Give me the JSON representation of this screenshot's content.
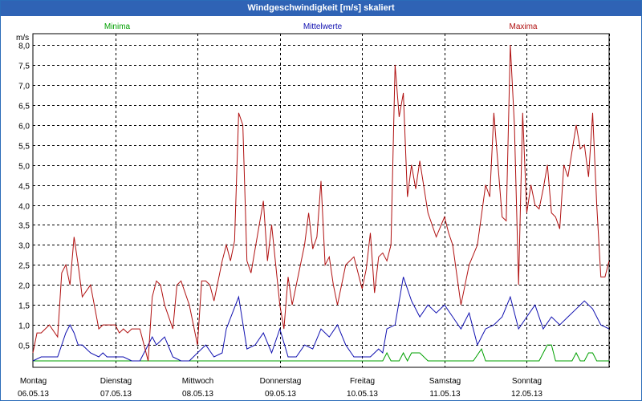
{
  "chart_data": {
    "type": "line",
    "title": "Windgeschwindigkeit [m/s] skaliert",
    "ylabel": "m/s",
    "ylim": [
      0,
      8.0
    ],
    "yticks": [
      "0,5",
      "1,0",
      "1,5",
      "2,0",
      "2,5",
      "3,0",
      "3,5",
      "4,0",
      "4,5",
      "5,0",
      "5,5",
      "6,0",
      "6,5",
      "7,0",
      "7,5",
      "8,0"
    ],
    "xlim": [
      0,
      7
    ],
    "xticks": [
      {
        "day": "Montag",
        "date": "06.05.13"
      },
      {
        "day": "Dienstag",
        "date": "07.05.13"
      },
      {
        "day": "Mittwoch",
        "date": "08.05.13"
      },
      {
        "day": "Donnerstag",
        "date": "09.05.13"
      },
      {
        "day": "Freitag",
        "date": "10.05.13"
      },
      {
        "day": "Samstag",
        "date": "11.05.13"
      },
      {
        "day": "Sonntag",
        "date": "12.05.13"
      }
    ],
    "grid": true,
    "series": [
      {
        "name": "Minima",
        "color": "#00a000",
        "x": [
          0,
          4.25,
          4.3,
          4.35,
          4.45,
          4.5,
          4.55,
          4.6,
          4.7,
          4.8,
          4.85,
          5.35,
          5.45,
          5.5,
          6.15,
          6.25,
          6.3,
          6.35,
          6.4,
          6.45,
          6.55,
          6.6,
          6.65,
          6.7,
          6.75,
          6.8,
          6.85,
          7.0
        ],
        "values": [
          0.1,
          0.1,
          0.3,
          0.1,
          0.1,
          0.3,
          0.1,
          0.3,
          0.3,
          0.1,
          0.1,
          0.1,
          0.4,
          0.1,
          0.1,
          0.5,
          0.5,
          0.1,
          0.1,
          0.1,
          0.1,
          0.3,
          0.1,
          0.1,
          0.3,
          0.3,
          0.1,
          0.1
        ]
      },
      {
        "name": "Mittelwerte",
        "color": "#1010b0",
        "x": [
          0,
          0.1,
          0.2,
          0.3,
          0.35,
          0.4,
          0.45,
          0.5,
          0.55,
          0.6,
          0.7,
          0.8,
          0.85,
          0.9,
          1.0,
          1.1,
          1.2,
          1.3,
          1.4,
          1.45,
          1.5,
          1.6,
          1.7,
          1.8,
          1.9,
          2.0,
          2.1,
          2.2,
          2.3,
          2.35,
          2.5,
          2.6,
          2.7,
          2.8,
          2.9,
          3.0,
          3.1,
          3.2,
          3.3,
          3.4,
          3.5,
          3.6,
          3.7,
          3.8,
          3.9,
          4.0,
          4.1,
          4.2,
          4.25,
          4.3,
          4.4,
          4.5,
          4.6,
          4.7,
          4.8,
          4.9,
          5.0,
          5.1,
          5.2,
          5.3,
          5.4,
          5.5,
          5.6,
          5.7,
          5.8,
          5.9,
          6.0,
          6.1,
          6.2,
          6.3,
          6.4,
          6.5,
          6.6,
          6.7,
          6.8,
          6.9,
          7.0
        ],
        "values": [
          0.1,
          0.2,
          0.2,
          0.2,
          0.5,
          0.8,
          1.0,
          0.8,
          0.5,
          0.5,
          0.3,
          0.2,
          0.3,
          0.2,
          0.2,
          0.2,
          0.1,
          0.1,
          0.5,
          0.7,
          0.5,
          0.7,
          0.2,
          0.1,
          0.1,
          0.3,
          0.5,
          0.2,
          0.3,
          0.9,
          1.7,
          0.4,
          0.5,
          0.8,
          0.3,
          0.9,
          0.2,
          0.2,
          0.5,
          0.4,
          0.9,
          0.7,
          1.0,
          0.5,
          0.2,
          0.2,
          0.2,
          0.4,
          0.3,
          0.9,
          1.0,
          2.2,
          1.6,
          1.2,
          1.5,
          1.3,
          1.5,
          1.2,
          0.9,
          1.3,
          0.5,
          0.9,
          1.0,
          1.2,
          1.7,
          0.9,
          1.2,
          1.5,
          0.9,
          1.2,
          1.0,
          1.2,
          1.4,
          1.6,
          1.4,
          1.0,
          0.9
        ]
      },
      {
        "name": "Maxima",
        "color": "#b01010",
        "x": [
          0,
          0.05,
          0.1,
          0.2,
          0.3,
          0.35,
          0.4,
          0.45,
          0.5,
          0.55,
          0.6,
          0.7,
          0.8,
          0.85,
          0.9,
          1.0,
          1.05,
          1.1,
          1.15,
          1.2,
          1.3,
          1.4,
          1.45,
          1.5,
          1.55,
          1.6,
          1.7,
          1.75,
          1.8,
          1.9,
          2.0,
          2.05,
          2.1,
          2.15,
          2.2,
          2.3,
          2.35,
          2.4,
          2.45,
          2.5,
          2.55,
          2.6,
          2.65,
          2.7,
          2.8,
          2.85,
          2.9,
          3.0,
          3.05,
          3.1,
          3.15,
          3.2,
          3.3,
          3.35,
          3.4,
          3.45,
          3.5,
          3.55,
          3.6,
          3.65,
          3.7,
          3.8,
          3.9,
          4.0,
          4.05,
          4.1,
          4.15,
          4.2,
          4.25,
          4.3,
          4.35,
          4.4,
          4.45,
          4.5,
          4.55,
          4.6,
          4.65,
          4.7,
          4.8,
          4.9,
          5.0,
          5.05,
          5.1,
          5.2,
          5.3,
          5.4,
          5.5,
          5.55,
          5.6,
          5.7,
          5.75,
          5.8,
          5.85,
          5.9,
          5.95,
          6.0,
          6.05,
          6.1,
          6.15,
          6.2,
          6.25,
          6.3,
          6.35,
          6.4,
          6.45,
          6.5,
          6.6,
          6.65,
          6.7,
          6.75,
          6.8,
          6.85,
          6.9,
          6.95,
          7.0
        ],
        "values": [
          0.3,
          0.8,
          0.8,
          1.0,
          0.7,
          2.3,
          2.5,
          2.0,
          3.2,
          2.5,
          1.7,
          2.0,
          0.9,
          1.0,
          1.0,
          1.0,
          0.8,
          0.9,
          0.8,
          0.9,
          0.9,
          0.1,
          1.7,
          2.1,
          2.0,
          1.5,
          0.9,
          2.0,
          2.1,
          1.5,
          0.5,
          2.1,
          2.1,
          2.0,
          1.6,
          2.6,
          3.0,
          2.6,
          3.1,
          6.3,
          6.0,
          2.6,
          2.3,
          2.9,
          4.1,
          2.6,
          3.5,
          1.5,
          0.9,
          2.2,
          1.5,
          2.0,
          3.0,
          3.8,
          2.9,
          3.2,
          4.6,
          2.5,
          2.7,
          2.0,
          1.5,
          2.5,
          2.7,
          1.9,
          2.4,
          3.3,
          1.8,
          2.7,
          2.8,
          2.6,
          3.0,
          7.5,
          6.2,
          6.8,
          4.2,
          5.0,
          4.4,
          5.1,
          3.8,
          3.2,
          3.7,
          3.3,
          3.0,
          1.5,
          2.5,
          3.0,
          4.5,
          4.2,
          6.3,
          3.7,
          3.6,
          8.0,
          6.0,
          2.0,
          6.3,
          3.8,
          4.5,
          4.0,
          3.9,
          4.4,
          5.0,
          3.8,
          3.7,
          3.4,
          5.0,
          4.7,
          6.0,
          5.4,
          5.5,
          4.7,
          6.3,
          4.0,
          2.2,
          2.2,
          2.6
        ]
      }
    ]
  }
}
